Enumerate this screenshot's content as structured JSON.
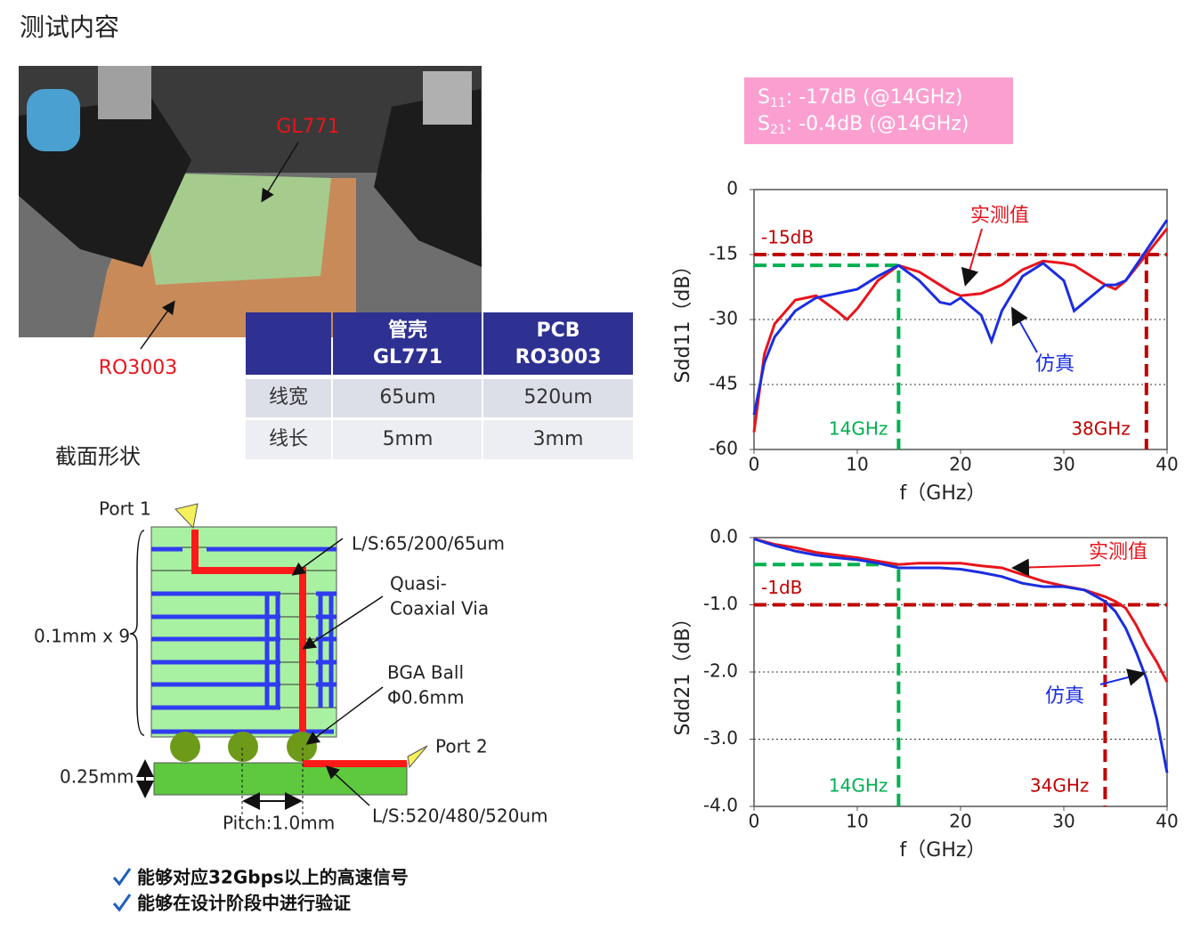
{
  "header": {
    "title": "测试内容"
  },
  "photo": {
    "labels": [
      "GL771",
      "RO3003"
    ]
  },
  "table": {
    "columns": [
      {
        "line1": "管壳",
        "line2": "GL771"
      },
      {
        "line1": "PCB",
        "line2": "RO3003"
      }
    ],
    "rows": [
      [
        "线宽",
        "65um",
        "520um"
      ],
      [
        "线长",
        "5mm",
        "3mm"
      ]
    ]
  },
  "cross_section": {
    "title": "截面形状",
    "port1": "Port 1",
    "port2": "Port 2",
    "layers": "0.1mm x 9",
    "ls_top": "L/S:65/200/65um",
    "via_line1": "Quasi-",
    "via_line2": "Coaxial Via",
    "ball_line1": "BGA Ball",
    "ball_line2": "Φ0.6mm",
    "pcb_thickness": "0.25mm",
    "pitch": "Pitch:1.0mm",
    "ls_bottom": "L/S:520/480/520um"
  },
  "bullets": [
    "能够对应32Gbps以上的高速信号",
    "能够在设计阶段中进行验证"
  ],
  "chart_data": [
    {
      "type": "line",
      "callout": [
        {
          "symbol": "S",
          "subscript": "11",
          "text": ": -17dB (@14GHz)"
        },
        {
          "symbol": "S",
          "subscript": "21",
          "text": ": -0.4dB (@14GHz)"
        }
      ],
      "y_label": "Sdd11（dB）",
      "x_label": "f（GHz）",
      "xlim": [
        0,
        40
      ],
      "xticks": [
        0,
        10,
        20,
        30,
        40
      ],
      "ylim": [
        -60,
        0
      ],
      "yticks": [
        0,
        -15,
        -30,
        -45,
        -60
      ],
      "grid": "dotted",
      "x": [
        0,
        1,
        2,
        4,
        6,
        8,
        9,
        10,
        12,
        14,
        16,
        18,
        19,
        20,
        22,
        23,
        24,
        26,
        28,
        30,
        31,
        32,
        34,
        35,
        36,
        38,
        40
      ],
      "series": [
        {
          "name": "实测值",
          "color": "#e8141c",
          "values": [
            -56,
            -38,
            -31,
            -25.5,
            -24.5,
            -28,
            -30,
            -27.5,
            -21,
            -17.5,
            -19,
            -22,
            -23.5,
            -24.5,
            -24,
            -23,
            -22,
            -18.5,
            -16.5,
            -17,
            -17.5,
            -19,
            -22,
            -23,
            -21,
            -15,
            -9
          ]
        },
        {
          "name": "仿真",
          "color": "#1a2de0",
          "values": [
            -52,
            -40,
            -34,
            -28,
            -25,
            -24,
            -23.5,
            -23,
            -20,
            -17.5,
            -21,
            -26,
            -26.5,
            -25,
            -29,
            -35,
            -28,
            -20,
            -17,
            -21,
            -28,
            -26,
            -22,
            -22,
            -21,
            -14,
            -7
          ]
        }
      ],
      "reference_lines": [
        {
          "label": "-15dB",
          "y": -15,
          "color": "#c00000"
        },
        {
          "label": "14GHz",
          "x": 14,
          "y": -17.5,
          "color": "#00b050"
        },
        {
          "label": "38GHz",
          "x": 38,
          "color": "#c00000"
        }
      ]
    },
    {
      "type": "line",
      "y_label": "Sdd21（dB）",
      "x_label": "f（GHz）",
      "xlim": [
        0,
        40
      ],
      "xticks": [
        0,
        10,
        20,
        30,
        40
      ],
      "ylim": [
        -4,
        0
      ],
      "yticks": [
        {
          "value": 0,
          "label": "0.0"
        },
        {
          "value": -1,
          "label": "-1.0"
        },
        {
          "value": -2,
          "label": "-2.0"
        },
        {
          "value": -3,
          "label": "-3.0"
        },
        {
          "value": -4,
          "label": "-4.0"
        }
      ],
      "grid": "dotted",
      "x": [
        0,
        2,
        4,
        6,
        8,
        10,
        12,
        14,
        16,
        18,
        20,
        22,
        24,
        26,
        28,
        30,
        32,
        34,
        35,
        36,
        37,
        38,
        39,
        40
      ],
      "series": [
        {
          "name": "实测值",
          "color": "#e8141c",
          "values": [
            -0.02,
            -0.1,
            -0.15,
            -0.22,
            -0.26,
            -0.3,
            -0.35,
            -0.4,
            -0.38,
            -0.38,
            -0.38,
            -0.42,
            -0.45,
            -0.55,
            -0.65,
            -0.72,
            -0.78,
            -0.88,
            -0.95,
            -1.05,
            -1.3,
            -1.6,
            -1.85,
            -2.15
          ]
        },
        {
          "name": "仿真",
          "color": "#1a2de0",
          "values": [
            -0.02,
            -0.12,
            -0.2,
            -0.26,
            -0.3,
            -0.33,
            -0.38,
            -0.45,
            -0.45,
            -0.45,
            -0.47,
            -0.52,
            -0.58,
            -0.68,
            -0.73,
            -0.73,
            -0.78,
            -0.95,
            -1.1,
            -1.35,
            -1.7,
            -2.1,
            -2.7,
            -3.5
          ]
        }
      ],
      "reference_lines": [
        {
          "label": "-1dB",
          "y": -1,
          "color": "#c00000"
        },
        {
          "label": "14GHz",
          "x": 14,
          "y": -0.4,
          "color": "#00b050"
        },
        {
          "label": "34GHz",
          "x": 34,
          "color": "#c00000"
        }
      ]
    }
  ]
}
